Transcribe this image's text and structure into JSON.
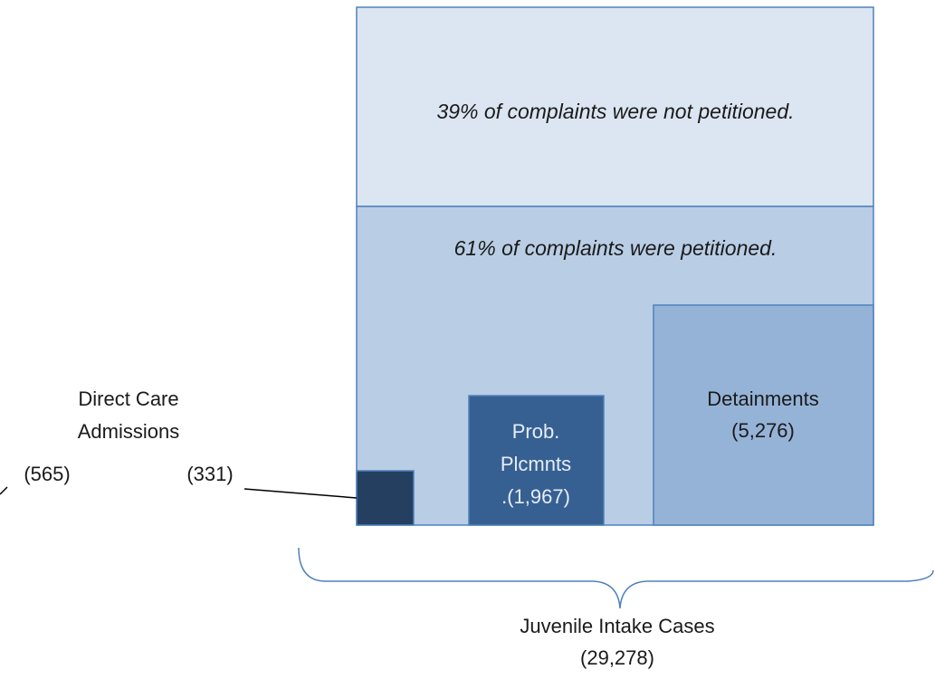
{
  "sections": {
    "not_petitioned": "39% of complaints were not petitioned.",
    "petitioned": "61% of complaints were petitioned."
  },
  "boxes": {
    "detainments": [
      "Detainments",
      "(5,276)"
    ],
    "probation": [
      "Prob.",
      "Plcmnts",
      ".(1,967)"
    ]
  },
  "direct_care": {
    "label": [
      "Direct Care",
      "Admissions"
    ],
    "left": "(565)",
    "right": "(331)"
  },
  "total": {
    "label": "Juvenile Intake Cases",
    "count": "(29,278)"
  }
}
